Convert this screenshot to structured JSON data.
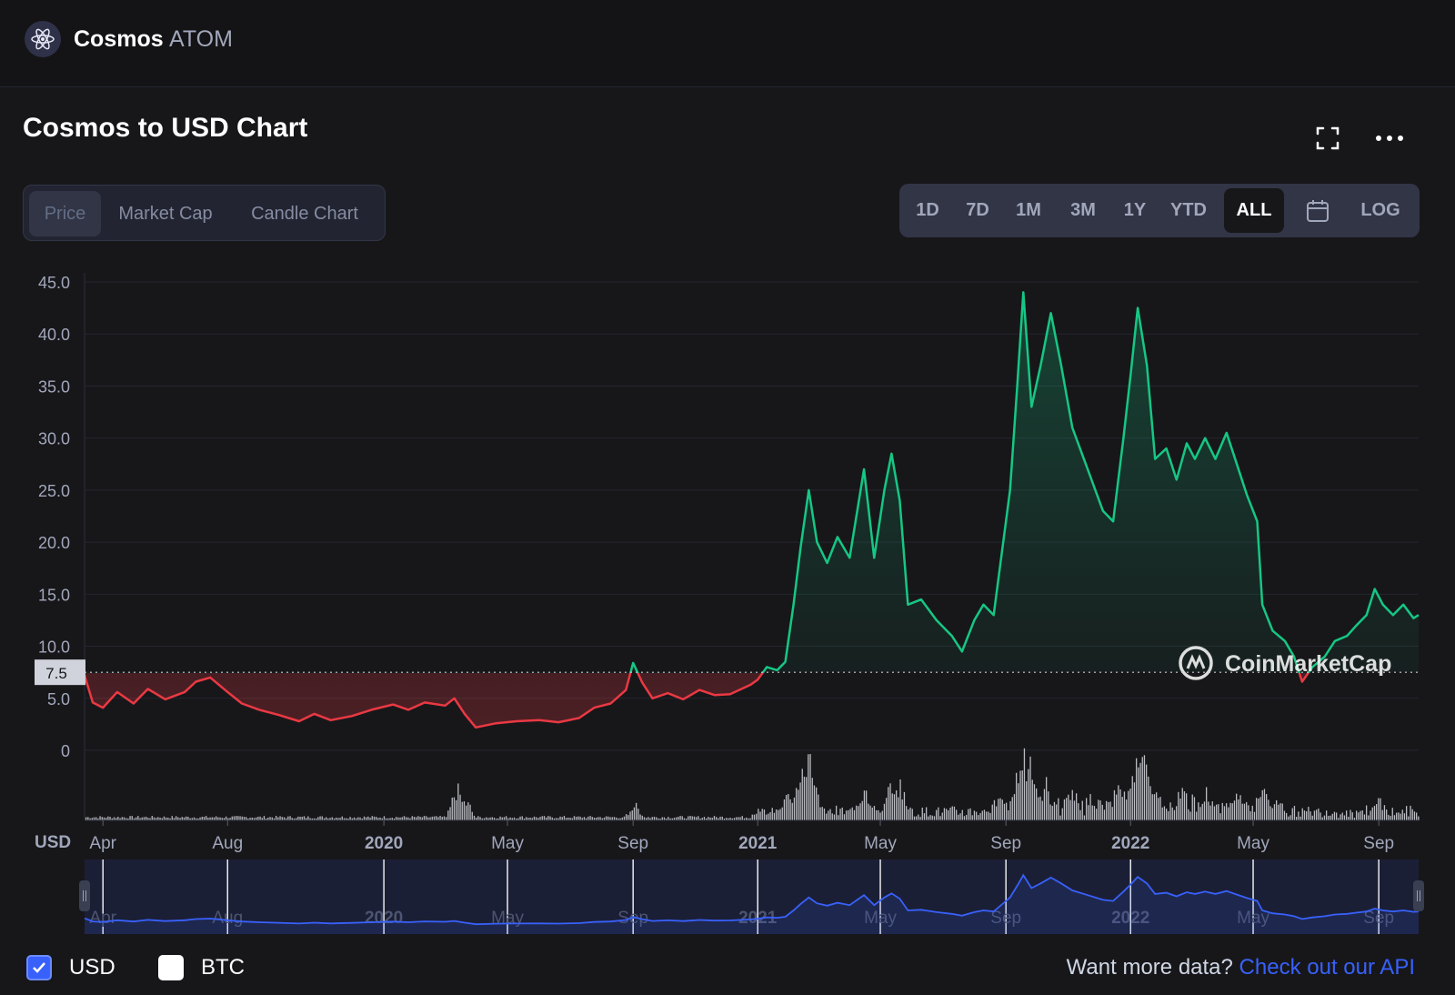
{
  "header": {
    "coin_name": "Cosmos",
    "coin_symbol": "ATOM",
    "logo_icon": "cosmos-atom-logo-icon"
  },
  "chart_title": "Cosmos to USD Chart",
  "toolbar": {
    "expand_icon": "expand-icon",
    "more_icon": "more-horizontal-icon"
  },
  "tabs": [
    {
      "label": "Price",
      "active": true
    },
    {
      "label": "Market Cap",
      "active": false
    },
    {
      "label": "Candle Chart",
      "active": false
    }
  ],
  "ranges": [
    {
      "label": "1D",
      "active": false
    },
    {
      "label": "7D",
      "active": false
    },
    {
      "label": "1M",
      "active": false
    },
    {
      "label": "3M",
      "active": false
    },
    {
      "label": "1Y",
      "active": false
    },
    {
      "label": "YTD",
      "active": false
    },
    {
      "label": "ALL",
      "active": true
    },
    {
      "label": "",
      "icon": "calendar-icon",
      "active": false
    },
    {
      "label": "LOG",
      "active": false
    }
  ],
  "colors": {
    "up": "#16c784",
    "down": "#ea3943",
    "navigator": "#3861fb",
    "background": "#17171a"
  },
  "chart_data": {
    "type": "area",
    "title": "Cosmos to USD Chart",
    "xlabel": "",
    "ylabel": "USD",
    "ylim": [
      0,
      45
    ],
    "yticks": [
      "45.0",
      "40.0",
      "35.0",
      "30.0",
      "25.0",
      "20.0",
      "15.0",
      "10.0",
      "5.0",
      "0"
    ],
    "baseline": 7.5,
    "baseline_label": "7.5",
    "x_range": [
      "2019-03-14",
      "2022-10-10"
    ],
    "xticks": [
      {
        "date": "2019-04-01",
        "label": "Apr",
        "major": false
      },
      {
        "date": "2019-08-01",
        "label": "Aug",
        "major": false
      },
      {
        "date": "2020-01-01",
        "label": "2020",
        "major": true
      },
      {
        "date": "2020-05-01",
        "label": "May",
        "major": false
      },
      {
        "date": "2020-09-01",
        "label": "Sep",
        "major": false
      },
      {
        "date": "2021-01-01",
        "label": "2021",
        "major": true
      },
      {
        "date": "2021-05-01",
        "label": "May",
        "major": false
      },
      {
        "date": "2021-09-01",
        "label": "Sep",
        "major": false
      },
      {
        "date": "2022-01-01",
        "label": "2022",
        "major": true
      },
      {
        "date": "2022-05-01",
        "label": "May",
        "major": false
      },
      {
        "date": "2022-09-01",
        "label": "Sep",
        "major": false
      }
    ],
    "grid": true,
    "watermark": "CoinMarketCap",
    "series": [
      {
        "name": "USD",
        "points": [
          [
            "2019-03-14",
            7.2
          ],
          [
            "2019-03-22",
            4.6
          ],
          [
            "2019-04-01",
            4.1
          ],
          [
            "2019-04-15",
            5.6
          ],
          [
            "2019-05-01",
            4.5
          ],
          [
            "2019-05-15",
            5.9
          ],
          [
            "2019-06-01",
            4.9
          ],
          [
            "2019-06-20",
            5.6
          ],
          [
            "2019-07-01",
            6.6
          ],
          [
            "2019-07-15",
            7.0
          ],
          [
            "2019-08-01",
            5.6
          ],
          [
            "2019-08-15",
            4.5
          ],
          [
            "2019-09-01",
            3.9
          ],
          [
            "2019-09-20",
            3.4
          ],
          [
            "2019-10-10",
            2.8
          ],
          [
            "2019-10-25",
            3.5
          ],
          [
            "2019-11-10",
            2.9
          ],
          [
            "2019-12-01",
            3.3
          ],
          [
            "2019-12-20",
            3.9
          ],
          [
            "2020-01-10",
            4.4
          ],
          [
            "2020-01-25",
            3.9
          ],
          [
            "2020-02-10",
            4.6
          ],
          [
            "2020-03-01",
            4.3
          ],
          [
            "2020-03-10",
            5.0
          ],
          [
            "2020-03-20",
            3.5
          ],
          [
            "2020-03-31",
            2.2
          ],
          [
            "2020-04-20",
            2.6
          ],
          [
            "2020-05-10",
            2.8
          ],
          [
            "2020-06-01",
            2.9
          ],
          [
            "2020-06-20",
            2.7
          ],
          [
            "2020-07-10",
            3.1
          ],
          [
            "2020-07-25",
            4.1
          ],
          [
            "2020-08-10",
            4.5
          ],
          [
            "2020-08-25",
            5.8
          ],
          [
            "2020-09-01",
            8.4
          ],
          [
            "2020-09-10",
            6.5
          ],
          [
            "2020-09-20",
            5.0
          ],
          [
            "2020-10-05",
            5.5
          ],
          [
            "2020-10-20",
            4.9
          ],
          [
            "2020-11-05",
            5.8
          ],
          [
            "2020-11-20",
            5.3
          ],
          [
            "2020-12-05",
            5.4
          ],
          [
            "2020-12-25",
            6.3
          ],
          [
            "2021-01-01",
            6.8
          ],
          [
            "2021-01-10",
            8.0
          ],
          [
            "2021-01-20",
            7.7
          ],
          [
            "2021-01-28",
            8.5
          ],
          [
            "2021-02-05",
            14.0
          ],
          [
            "2021-02-12",
            19.5
          ],
          [
            "2021-02-20",
            25.0
          ],
          [
            "2021-02-28",
            20.0
          ],
          [
            "2021-03-10",
            18.0
          ],
          [
            "2021-03-20",
            20.5
          ],
          [
            "2021-04-01",
            18.5
          ],
          [
            "2021-04-15",
            27.0
          ],
          [
            "2021-04-25",
            18.5
          ],
          [
            "2021-05-05",
            25.0
          ],
          [
            "2021-05-12",
            28.5
          ],
          [
            "2021-05-20",
            24.0
          ],
          [
            "2021-05-28",
            14.0
          ],
          [
            "2021-06-10",
            14.5
          ],
          [
            "2021-06-25",
            12.5
          ],
          [
            "2021-07-10",
            11.0
          ],
          [
            "2021-07-20",
            9.5
          ],
          [
            "2021-08-01",
            12.5
          ],
          [
            "2021-08-10",
            14.0
          ],
          [
            "2021-08-20",
            13.0
          ],
          [
            "2021-08-28",
            19.0
          ],
          [
            "2021-09-05",
            25.0
          ],
          [
            "2021-09-12",
            35.0
          ],
          [
            "2021-09-18",
            44.0
          ],
          [
            "2021-09-26",
            33.0
          ],
          [
            "2021-10-05",
            37.0
          ],
          [
            "2021-10-15",
            42.0
          ],
          [
            "2021-10-25",
            37.0
          ],
          [
            "2021-11-05",
            31.0
          ],
          [
            "2021-11-20",
            27.0
          ],
          [
            "2021-12-05",
            23.0
          ],
          [
            "2021-12-15",
            22.0
          ],
          [
            "2021-12-25",
            30.0
          ],
          [
            "2022-01-01",
            36.0
          ],
          [
            "2022-01-08",
            42.5
          ],
          [
            "2022-01-17",
            37.0
          ],
          [
            "2022-01-25",
            28.0
          ],
          [
            "2022-02-05",
            29.0
          ],
          [
            "2022-02-15",
            26.0
          ],
          [
            "2022-02-25",
            29.5
          ],
          [
            "2022-03-05",
            28.0
          ],
          [
            "2022-03-15",
            30.0
          ],
          [
            "2022-03-25",
            28.0
          ],
          [
            "2022-04-05",
            30.5
          ],
          [
            "2022-04-15",
            27.5
          ],
          [
            "2022-04-25",
            24.5
          ],
          [
            "2022-05-05",
            22.0
          ],
          [
            "2022-05-10",
            14.0
          ],
          [
            "2022-05-20",
            11.5
          ],
          [
            "2022-06-01",
            10.5
          ],
          [
            "2022-06-10",
            9.0
          ],
          [
            "2022-06-18",
            6.6
          ],
          [
            "2022-06-28",
            8.0
          ],
          [
            "2022-07-10",
            9.0
          ],
          [
            "2022-07-20",
            10.5
          ],
          [
            "2022-08-01",
            11.0
          ],
          [
            "2022-08-10",
            12.0
          ],
          [
            "2022-08-20",
            13.0
          ],
          [
            "2022-08-28",
            15.5
          ],
          [
            "2022-09-05",
            14.0
          ],
          [
            "2022-09-15",
            13.0
          ],
          [
            "2022-09-25",
            14.0
          ],
          [
            "2022-10-05",
            12.7
          ],
          [
            "2022-10-10",
            13.0
          ]
        ]
      }
    ],
    "volume_peaks": [
      [
        "2020-03-12",
        0.45
      ],
      [
        "2020-03-20",
        0.3
      ],
      [
        "2020-09-02",
        0.22
      ],
      [
        "2021-01-28",
        0.4
      ],
      [
        "2021-02-12",
        0.65
      ],
      [
        "2021-02-18",
        0.95
      ],
      [
        "2021-02-24",
        0.55
      ],
      [
        "2021-04-15",
        0.45
      ],
      [
        "2021-05-12",
        0.55
      ],
      [
        "2021-05-20",
        0.5
      ],
      [
        "2021-08-25",
        0.4
      ],
      [
        "2021-09-12",
        0.7
      ],
      [
        "2021-09-18",
        1.0
      ],
      [
        "2021-09-24",
        0.75
      ],
      [
        "2021-10-10",
        0.5
      ],
      [
        "2021-11-05",
        0.45
      ],
      [
        "2021-12-20",
        0.6
      ],
      [
        "2022-01-05",
        0.85
      ],
      [
        "2022-01-12",
        0.95
      ],
      [
        "2022-01-20",
        0.65
      ],
      [
        "2022-02-20",
        0.45
      ],
      [
        "2022-03-15",
        0.4
      ],
      [
        "2022-04-15",
        0.45
      ],
      [
        "2022-05-10",
        0.5
      ],
      [
        "2022-09-01",
        0.3
      ]
    ]
  },
  "footer": {
    "usd_label": "USD",
    "btc_label": "BTC",
    "usd_checked": true,
    "btc_checked": false,
    "api_prefix": "Want more data?",
    "api_link": "Check out our API"
  }
}
